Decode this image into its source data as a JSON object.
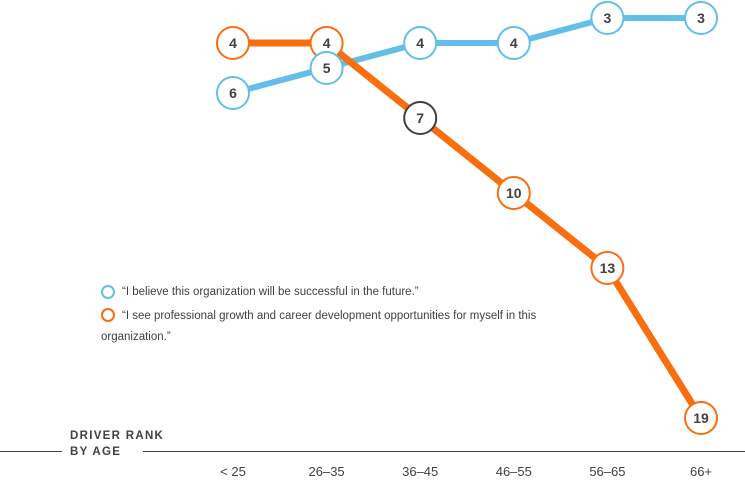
{
  "chart_data": {
    "type": "line",
    "title": "DRIVER RANK BY AGE",
    "categories": [
      "< 25",
      "26–35",
      "36–45",
      "46–55",
      "56–65",
      "66+"
    ],
    "series": [
      {
        "name": "“I believe this organization will be successful in the future.”",
        "color": "#63BFE8",
        "values": [
          6,
          5,
          4,
          4,
          3,
          3
        ]
      },
      {
        "name": "“I see professional growth and career development opportunities for myself in this organization.”",
        "color": "#F96E0F",
        "values": [
          4,
          4,
          7,
          10,
          13,
          19
        ],
        "highlight_point": {
          "index": 2,
          "value": 7,
          "ring_color": "#414042"
        }
      }
    ],
    "axis_title_line1": "DRIVER RANK",
    "axis_title_line2": "BY AGE",
    "ylabel": "DRIVER RANK",
    "xlabel": "AGE",
    "ylim": [
      3,
      19
    ],
    "y_inverted": true,
    "grid": false,
    "legend_position": "center-left",
    "value_labels": "shown inside circular markers"
  },
  "colors": {
    "blue": "#63BFE8",
    "orange": "#F96E0F",
    "dark_text": "#414042",
    "axis_line": "#414042",
    "marker_fill": "#FFFFFF"
  }
}
